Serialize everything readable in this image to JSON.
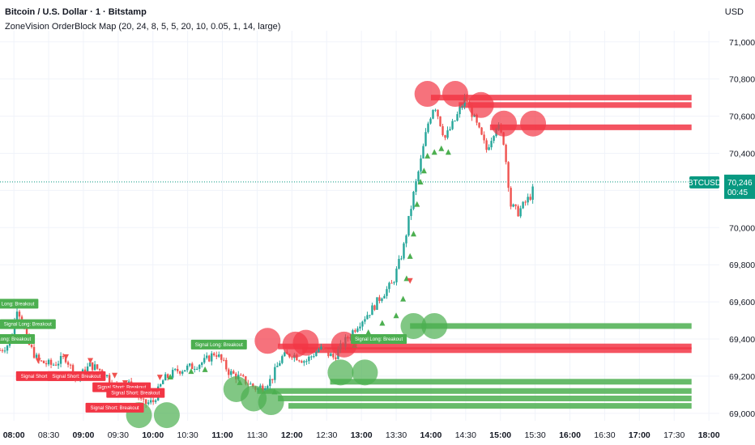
{
  "header": {
    "title": "Bitcoin / U.S. Dollar · 1 · Bitstamp",
    "indicator": "ZoneVision OrderBlock Map (20, 24, 8, 5, 5, 20, 10, 0.05, 1, 14, large)",
    "currency": "USD"
  },
  "price_tag": {
    "symbol": "BTCUSD",
    "price": "70,246",
    "countdown": "00:45"
  },
  "colors": {
    "up": "#26a69a",
    "down": "#ef5350",
    "red_zone": "#f23645",
    "green_zone": "#4caf50",
    "tag_bg": "#089981"
  },
  "chart_data": {
    "type": "candlestick",
    "symbol": "BTCUSD",
    "interval": "1",
    "exchange": "Bitstamp",
    "current_price": 70246,
    "y_ticks": [
      69000,
      69200,
      69400,
      69600,
      69800,
      70000,
      70200,
      70400,
      70600,
      70800,
      71000
    ],
    "y_tick_labels": [
      "69,000",
      "69,200",
      "69,400",
      "69,600",
      "69,800",
      "70,000",
      "70,200",
      "70,400",
      "70,600",
      "70,800",
      "71,000"
    ],
    "ylim": [
      68960,
      71060
    ],
    "x_ticks": [
      "08:00",
      "08:30",
      "09:00",
      "09:30",
      "10:00",
      "10:30",
      "11:00",
      "11:30",
      "12:00",
      "12:30",
      "13:00",
      "13:30",
      "14:00",
      "14:30",
      "15:00",
      "15:30",
      "16:00",
      "16:30",
      "17:00",
      "17:30",
      "18:00"
    ],
    "x_tick_hours": [
      8,
      8.5,
      9,
      9.5,
      10,
      10.5,
      11,
      11.5,
      12,
      12.5,
      13,
      13.5,
      14,
      14.5,
      15,
      15.5,
      16,
      16.5,
      17,
      17.5,
      18
    ],
    "xlim": [
      7.8,
      18.15
    ],
    "price_path": [
      [
        7.8,
        69340
      ],
      [
        7.95,
        69380
      ],
      [
        8.05,
        69580
      ],
      [
        8.2,
        69380
      ],
      [
        8.35,
        69280
      ],
      [
        8.55,
        69260
      ],
      [
        8.75,
        69300
      ],
      [
        8.9,
        69180
      ],
      [
        9.1,
        69260
      ],
      [
        9.3,
        69220
      ],
      [
        9.5,
        69120
      ],
      [
        9.7,
        69160
      ],
      [
        9.85,
        69050
      ],
      [
        10.0,
        69060
      ],
      [
        10.15,
        69180
      ],
      [
        10.35,
        69230
      ],
      [
        10.55,
        69250
      ],
      [
        10.75,
        69280
      ],
      [
        10.9,
        69330
      ],
      [
        11.1,
        69220
      ],
      [
        11.3,
        69180
      ],
      [
        11.5,
        69130
      ],
      [
        11.7,
        69180
      ],
      [
        11.85,
        69300
      ],
      [
        12.0,
        69320
      ],
      [
        12.2,
        69280
      ],
      [
        12.4,
        69350
      ],
      [
        12.6,
        69300
      ],
      [
        12.75,
        69380
      ],
      [
        12.95,
        69480
      ],
      [
        13.15,
        69560
      ],
      [
        13.3,
        69640
      ],
      [
        13.45,
        69700
      ],
      [
        13.6,
        69880
      ],
      [
        13.75,
        70180
      ],
      [
        13.85,
        70350
      ],
      [
        13.95,
        70550
      ],
      [
        14.05,
        70670
      ],
      [
        14.2,
        70480
      ],
      [
        14.35,
        70580
      ],
      [
        14.5,
        70700
      ],
      [
        14.65,
        70560
      ],
      [
        14.8,
        70420
      ],
      [
        14.95,
        70560
      ],
      [
        15.05,
        70460
      ],
      [
        15.15,
        70120
      ],
      [
        15.25,
        70080
      ],
      [
        15.35,
        70130
      ],
      [
        15.45,
        70180
      ],
      [
        15.5,
        70246
      ]
    ],
    "order_blocks": {
      "bearish": [
        {
          "price": 70700,
          "start": 14.0
        },
        {
          "price": 70660,
          "start": 14.4
        },
        {
          "price": 70540,
          "start": 14.85
        },
        {
          "price": 69360,
          "start": 11.8
        },
        {
          "price": 69340,
          "start": 12.15
        }
      ],
      "bullish": [
        {
          "price": 69470,
          "start": 13.7
        },
        {
          "price": 69170,
          "start": 12.55
        },
        {
          "price": 69120,
          "start": 11.5
        },
        {
          "price": 69080,
          "start": 11.8
        },
        {
          "price": 69040,
          "start": 11.95
        }
      ]
    },
    "zone_circles": {
      "bearish": [
        [
          13.95,
          70720
        ],
        [
          14.35,
          70720
        ],
        [
          14.72,
          70660
        ],
        [
          15.05,
          70560
        ],
        [
          15.47,
          70560
        ],
        [
          11.65,
          69390
        ],
        [
          12.05,
          69370
        ],
        [
          12.2,
          69380
        ],
        [
          12.75,
          69370
        ]
      ],
      "bullish": [
        [
          13.75,
          69470
        ],
        [
          14.05,
          69470
        ],
        [
          12.7,
          69220
        ],
        [
          13.05,
          69220
        ],
        [
          11.2,
          69130
        ],
        [
          11.45,
          69080
        ],
        [
          11.7,
          69060
        ],
        [
          9.8,
          68990
        ],
        [
          10.2,
          68990
        ]
      ]
    },
    "signals": {
      "long_label": "Signal Long: Breakout",
      "short_label": "Signal Short: Breakout",
      "long": [
        [
          7.95,
          69590
        ],
        [
          8.2,
          69480
        ],
        [
          7.9,
          69400
        ],
        [
          10.95,
          69370
        ],
        [
          13.25,
          69400
        ]
      ],
      "short": [
        [
          8.45,
          69200
        ],
        [
          8.9,
          69200
        ],
        [
          9.55,
          69140
        ],
        [
          9.75,
          69110
        ],
        [
          9.45,
          69030
        ]
      ]
    },
    "up_markers": [
      [
        10.25,
        69230
      ],
      [
        10.55,
        69260
      ],
      [
        10.75,
        69270
      ],
      [
        11.25,
        69200
      ],
      [
        11.75,
        69150
      ],
      [
        12.9,
        69400
      ],
      [
        13.1,
        69470
      ],
      [
        13.3,
        69520
      ],
      [
        13.5,
        69560
      ],
      [
        13.6,
        69650
      ],
      [
        13.65,
        69760
      ],
      [
        13.7,
        69880
      ],
      [
        13.75,
        70000
      ],
      [
        13.8,
        70160
      ],
      [
        13.85,
        70280
      ],
      [
        13.9,
        70340
      ],
      [
        13.95,
        70420
      ],
      [
        14.05,
        70440
      ],
      [
        14.15,
        70460
      ],
      [
        14.25,
        70440
      ]
    ],
    "down_markers": [
      [
        8.35,
        69250
      ],
      [
        8.75,
        69270
      ],
      [
        9.1,
        69250
      ],
      [
        9.45,
        69170
      ],
      [
        9.6,
        69130
      ],
      [
        10.1,
        69160
      ],
      [
        13.7,
        69680
      ]
    ]
  }
}
